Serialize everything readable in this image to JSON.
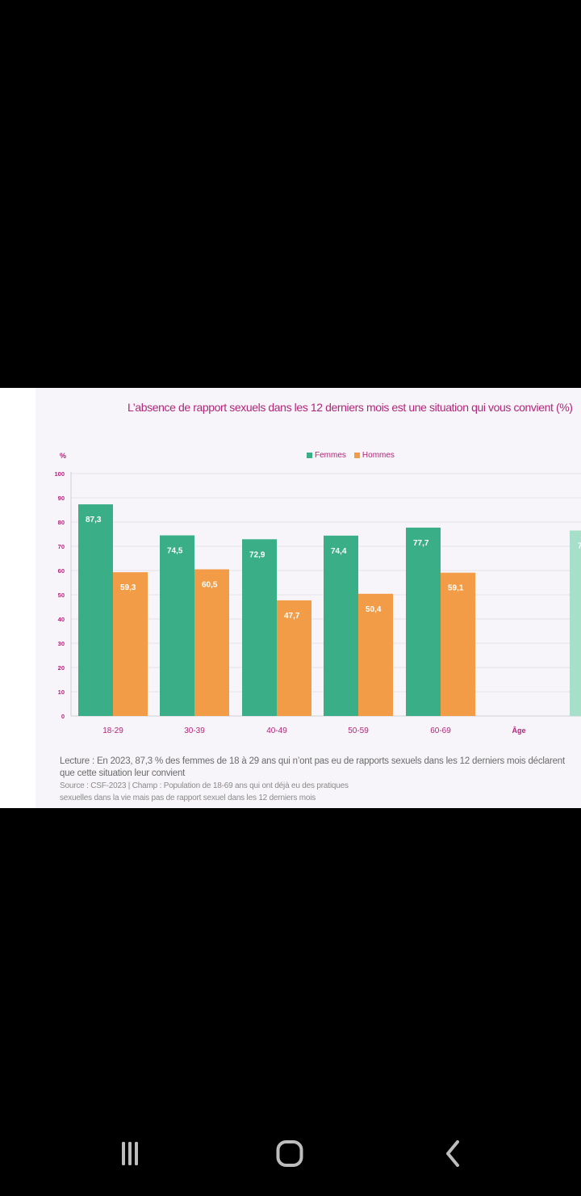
{
  "chart_data": {
    "type": "bar",
    "title": "L’absence de rapport sexuels dans les 12 derniers mois est une situation qui vous convient (%)",
    "ylabel": "%",
    "xlabel": "Âge",
    "ylim": [
      0,
      100
    ],
    "yticks": [
      "0",
      "10",
      "20",
      "30",
      "40",
      "50",
      "60",
      "70",
      "80",
      "90",
      "100"
    ],
    "categories": [
      "18-29",
      "30-39",
      "40-49",
      "50-59",
      "60-69"
    ],
    "series": [
      {
        "name": "Femmes",
        "color": "#3aaf87",
        "values": [
          87.3,
          74.5,
          72.9,
          74.4,
          77.7
        ],
        "labels": [
          "87,3",
          "74,5",
          "72,9",
          "74,4",
          "77,7"
        ]
      },
      {
        "name": "Hommes",
        "color": "#f29c47",
        "values": [
          59.3,
          60.5,
          47.7,
          50.4,
          59.1
        ],
        "labels": [
          "59,3",
          "60,5",
          "47,7",
          "50,4",
          "59,1"
        ]
      }
    ],
    "partial_bar": {
      "color": "#a6dfca",
      "value": 76.5,
      "label": "7"
    },
    "grid": true,
    "legend_position": "top-center"
  },
  "notes": {
    "lecture": "Lecture : En 2023, 87,3 % des femmes de 18 à 29 ans qui n’ont pas eu de rapports sexuels dans les 12 derniers mois déclarent que cette situation leur convient",
    "source_line1": "Source : CSF-2023 | Champ : Population de 18-69 ans qui ont déjà eu des pratiques",
    "source_line2": "sexuelles dans la vie mais pas de rapport sexuel dans les 12 derniers mois"
  },
  "navbar": {
    "items": [
      "recent-apps",
      "home",
      "back"
    ]
  }
}
